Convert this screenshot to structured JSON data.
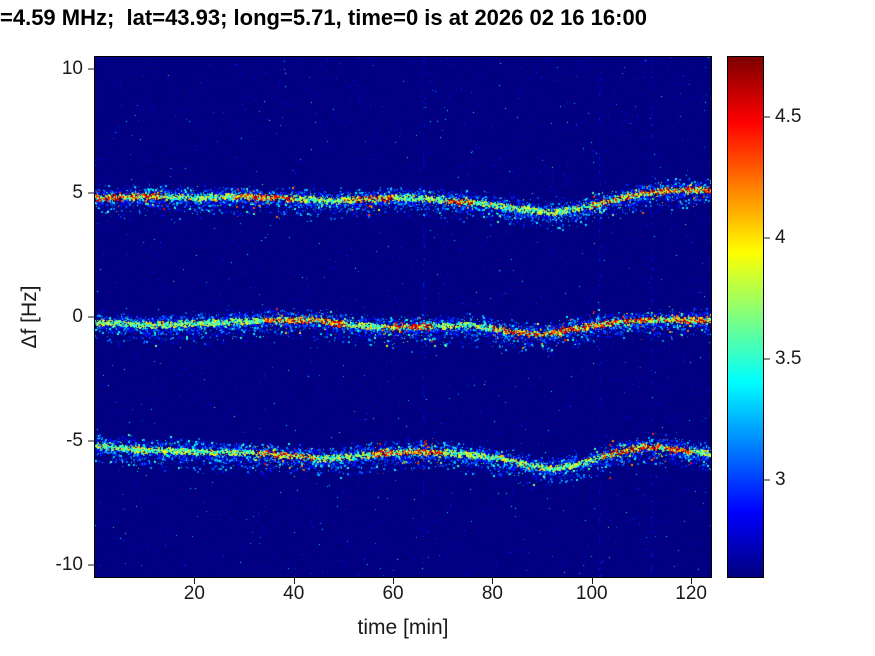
{
  "chart_data": {
    "type": "heatmap",
    "title": "=4.59 MHz;  lat=43.93; long=5.71, time=0 is at 2026 02 16 16:00",
    "xlabel": "time [min]",
    "ylabel": "Δf [Hz]",
    "xlim": [
      0,
      124
    ],
    "ylim": [
      -10.5,
      10.5
    ],
    "xticks": [
      20,
      40,
      60,
      80,
      100,
      120
    ],
    "yticks": [
      10,
      5,
      0,
      -5,
      -10
    ],
    "colormap": "jet",
    "colorbar_range": [
      2.6,
      4.75
    ],
    "colorbar_ticks": [
      4.5,
      4,
      3.5,
      3
    ],
    "grid": false,
    "background_value": 2.6,
    "noise": {
      "speckle_count": 12000,
      "speckle_max": 0.2,
      "bright_count": 420,
      "bright_max": 0.45,
      "streak_times": [
        66,
        101.5,
        112
      ]
    },
    "bands": [
      {
        "label": "upper echo trace",
        "center_freq_hz": 5,
        "spread_hz": 0.38,
        "path": [
          [
            0,
            4.85
          ],
          [
            10,
            4.9
          ],
          [
            20,
            4.85
          ],
          [
            30,
            4.9
          ],
          [
            40,
            4.8
          ],
          [
            48,
            4.7
          ],
          [
            55,
            4.8
          ],
          [
            62,
            4.85
          ],
          [
            70,
            4.75
          ],
          [
            78,
            4.6
          ],
          [
            85,
            4.4
          ],
          [
            92,
            4.25
          ],
          [
            98,
            4.45
          ],
          [
            104,
            4.75
          ],
          [
            110,
            5.0
          ],
          [
            116,
            5.15
          ],
          [
            124,
            5.15
          ]
        ],
        "hot_segments": [
          [
            0,
            14
          ],
          [
            28,
            40
          ],
          [
            50,
            60
          ],
          [
            70,
            76
          ],
          [
            100,
            124
          ]
        ]
      },
      {
        "label": "center echo trace",
        "center_freq_hz": 0,
        "spread_hz": 0.38,
        "path": [
          [
            0,
            -0.2
          ],
          [
            12,
            -0.3
          ],
          [
            24,
            -0.2
          ],
          [
            34,
            -0.1
          ],
          [
            44,
            -0.1
          ],
          [
            52,
            -0.3
          ],
          [
            60,
            -0.4
          ],
          [
            68,
            -0.35
          ],
          [
            76,
            -0.3
          ],
          [
            84,
            -0.55
          ],
          [
            90,
            -0.7
          ],
          [
            96,
            -0.45
          ],
          [
            104,
            -0.2
          ],
          [
            112,
            -0.1
          ],
          [
            124,
            -0.1
          ]
        ],
        "hot_segments": [
          [
            34,
            50
          ],
          [
            58,
            68
          ],
          [
            80,
            124
          ]
        ]
      },
      {
        "label": "lower echo trace",
        "center_freq_hz": -5.5,
        "spread_hz": 0.4,
        "path": [
          [
            0,
            -5.15
          ],
          [
            10,
            -5.35
          ],
          [
            20,
            -5.4
          ],
          [
            30,
            -5.45
          ],
          [
            38,
            -5.55
          ],
          [
            46,
            -5.7
          ],
          [
            52,
            -5.6
          ],
          [
            58,
            -5.45
          ],
          [
            66,
            -5.4
          ],
          [
            74,
            -5.5
          ],
          [
            82,
            -5.7
          ],
          [
            88,
            -6.0
          ],
          [
            93,
            -6.1
          ],
          [
            99,
            -5.8
          ],
          [
            105,
            -5.45
          ],
          [
            110,
            -5.2
          ],
          [
            116,
            -5.3
          ],
          [
            124,
            -5.5
          ]
        ],
        "hot_segments": [
          [
            32,
            44
          ],
          [
            56,
            70
          ],
          [
            102,
            120
          ]
        ]
      }
    ]
  },
  "colors": {
    "figure_bg": "#ffffff",
    "axes_box": "#000000",
    "tick_text": "#1a1a1a",
    "title_text": "#000000",
    "heat_background": "#000080"
  }
}
